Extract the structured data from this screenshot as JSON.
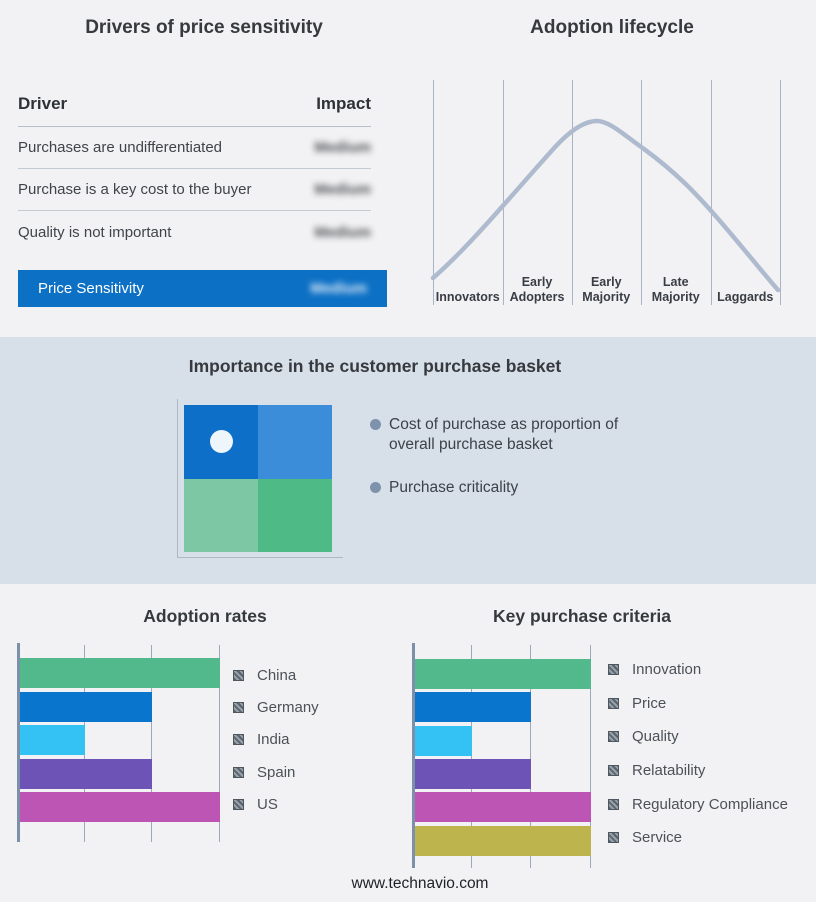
{
  "page": {
    "background": "#f2f2f4",
    "band_background": "#d7dfe9",
    "footer": "www.technavio.com"
  },
  "drivers_panel": {
    "title": "Drivers of price sensitivity",
    "columns": {
      "driver": "Driver",
      "impact": "Impact"
    },
    "rows": [
      {
        "driver": "Purchases are undifferentiated",
        "impact": "Medium",
        "impact_blurred": true
      },
      {
        "driver": "Purchase is a key cost to the buyer",
        "impact": "Medium",
        "impact_blurred": true
      },
      {
        "driver": "Quality is not important",
        "impact": "Medium",
        "impact_blurred": true
      }
    ],
    "highlight_row": {
      "driver": "Price Sensitivity",
      "impact": "Medium",
      "impact_blurred": true,
      "background": "#0c70c5"
    }
  },
  "lifecycle_panel": {
    "title": "Adoption lifecycle",
    "stages": [
      "Innovators",
      "Early Adopters",
      "Early Majority",
      "Late Majority",
      "Laggards"
    ],
    "curve_color": "#aebbce"
  },
  "basket_panel": {
    "title": "Importance in the customer purchase basket",
    "bullets": [
      "Cost of purchase as proportion of overall purchase basket",
      "Purchase criticality"
    ],
    "quadrant": {
      "top_left": "#0e6fc8",
      "top_right": "#3b8dd9",
      "bottom_left": "#7ec7a5",
      "bottom_right": "#4eba86",
      "marker": "white-dot-in-top-left"
    }
  },
  "chart_data": [
    {
      "type": "line",
      "title": "Adoption lifecycle",
      "x_categories": [
        "Innovators",
        "Early Adopters",
        "Early Majority",
        "Late Majority",
        "Laggards"
      ],
      "description": "Bell-shaped adoption curve rising from Innovators, peaking within Early Majority, falling through Laggards",
      "peak_stage": "Early Majority",
      "grid": "vertical-only",
      "legend": false
    },
    {
      "type": "bar",
      "orientation": "horizontal",
      "title": "Adoption rates",
      "categories": [
        "China",
        "Germany",
        "India",
        "Spain",
        "US"
      ],
      "values": [
        3,
        2,
        1,
        2,
        3
      ],
      "xlim": [
        0,
        3
      ],
      "colors": [
        "#52b98c",
        "#0a75cc",
        "#34c1f3",
        "#6e53b6",
        "#bd55b4"
      ],
      "legend_position": "right",
      "grid": "vertical-only"
    },
    {
      "type": "bar",
      "orientation": "horizontal",
      "title": "Key purchase criteria",
      "categories": [
        "Innovation",
        "Price",
        "Quality",
        "Relatability",
        "Regulatory Compliance",
        "Service"
      ],
      "values": [
        3,
        2,
        1,
        2,
        3,
        3
      ],
      "xlim": [
        0,
        3
      ],
      "colors": [
        "#52b98c",
        "#0a75cc",
        "#34c1f3",
        "#6e53b6",
        "#bd55b4",
        "#bdb44d"
      ],
      "legend_position": "right",
      "grid": "vertical-only"
    }
  ]
}
